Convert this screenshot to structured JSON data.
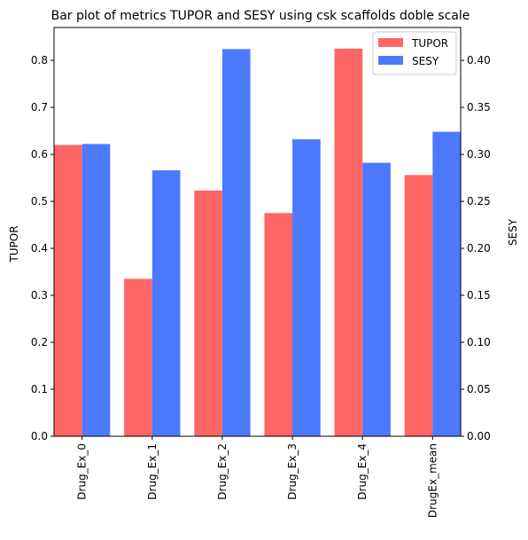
{
  "chart_data": {
    "type": "bar",
    "title": "Bar plot of metrics TUPOR and SESY using csk scaffolds doble scale",
    "categories": [
      "Drug_Ex_0",
      "Drug_Ex_1",
      "Drug_Ex_2",
      "Drug_Ex_3",
      "Drug_Ex_4",
      "DrugEx_mean"
    ],
    "series": [
      {
        "name": "TUPOR",
        "axis": "left",
        "color": "#ff6666",
        "values": [
          0.62,
          0.335,
          0.523,
          0.475,
          0.825,
          0.556
        ]
      },
      {
        "name": "SESY",
        "axis": "right",
        "color": "#4d79ff",
        "values": [
          0.311,
          0.283,
          0.412,
          0.316,
          0.291,
          0.324
        ]
      }
    ],
    "xlabel": "",
    "ylabel": "TUPOR",
    "y2label": "SESY",
    "ylim": [
      0,
      0.87
    ],
    "y2lim": [
      0,
      0.435
    ],
    "yticks": [
      "0.0",
      "0.1",
      "0.2",
      "0.3",
      "0.4",
      "0.5",
      "0.6",
      "0.7",
      "0.8"
    ],
    "y2ticks": [
      "0.00",
      "0.05",
      "0.10",
      "0.15",
      "0.20",
      "0.25",
      "0.30",
      "0.35",
      "0.40"
    ],
    "legend": "top-right",
    "grid": false
  }
}
